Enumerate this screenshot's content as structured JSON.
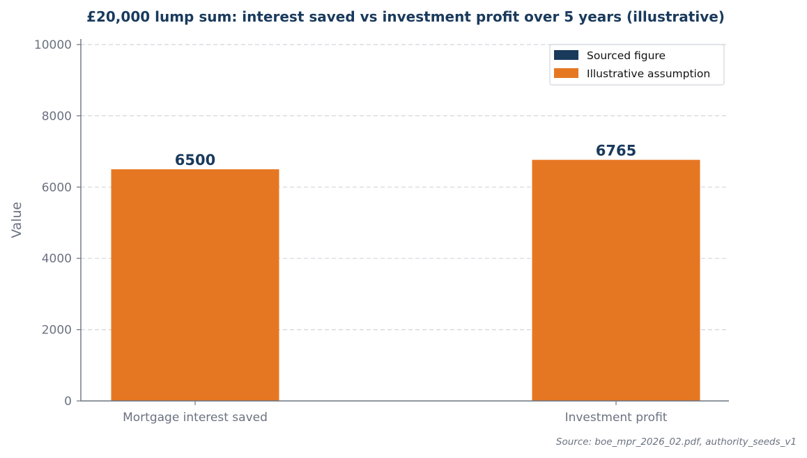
{
  "chart_data": {
    "type": "bar",
    "title": "£20,000 lump sum: interest saved vs investment profit over 5 years (illustrative)",
    "xlabel": "",
    "ylabel": "Value",
    "categories": [
      "Mortgage interest saved",
      "Investment profit"
    ],
    "values": [
      6500,
      6765
    ],
    "data_labels": [
      "6500",
      "6765"
    ],
    "bar_kind": [
      "illustrative",
      "illustrative"
    ],
    "ylim": [
      0,
      10000
    ],
    "yticks": [
      0,
      2000,
      4000,
      6000,
      8000,
      10000
    ],
    "ytick_labels": [
      "0",
      "2000",
      "4000",
      "6000",
      "8000",
      "10000"
    ],
    "grid": true,
    "legend": {
      "placement": "top-right",
      "entries": [
        {
          "key": "sourced",
          "label": "Sourced figure",
          "color": "#1a3a5c"
        },
        {
          "key": "illustrative",
          "label": "Illustrative assumption",
          "color": "#e67722"
        }
      ]
    },
    "source_note": "Source: boe_mpr_2026_02.pdf, authority_seeds_v1"
  },
  "colors": {
    "title": "#1a3a5c",
    "data_label": "#1a3a5c",
    "axis_text": "#6b7280",
    "axis_line": "#6b7280",
    "grid": "#d1d5db",
    "sourced": "#1a3a5c",
    "illustrative": "#e67722"
  }
}
